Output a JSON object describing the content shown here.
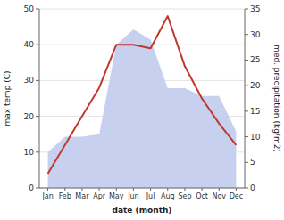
{
  "chart_data": {
    "type": "line",
    "categories": [
      "Jan",
      "Feb",
      "Mar",
      "Apr",
      "May",
      "Jun",
      "Jul",
      "Aug",
      "Sep",
      "Oct",
      "Nov",
      "Dec"
    ],
    "series": [
      {
        "type": "area",
        "axis": "y2",
        "color": "#c8d0f0",
        "values": [
          7,
          10,
          10,
          10.5,
          28,
          31,
          29,
          19.5,
          19.5,
          18,
          18,
          11
        ]
      },
      {
        "type": "line",
        "color": "#c0392b",
        "values": [
          4,
          12,
          20,
          28,
          40,
          40,
          39,
          48,
          34,
          25,
          18,
          12
        ]
      }
    ],
    "xlabel": "date (month)",
    "ylabel": "max temp (C)",
    "y2label": "med. precipitation (kg/m2)",
    "ylim": [
      0,
      50
    ],
    "yticks": [
      0,
      10,
      20,
      30,
      40,
      50
    ],
    "y2lim": [
      0,
      35
    ],
    "y2ticks": [
      0,
      5,
      10,
      15,
      20,
      25,
      30,
      35
    ],
    "grid": true
  }
}
